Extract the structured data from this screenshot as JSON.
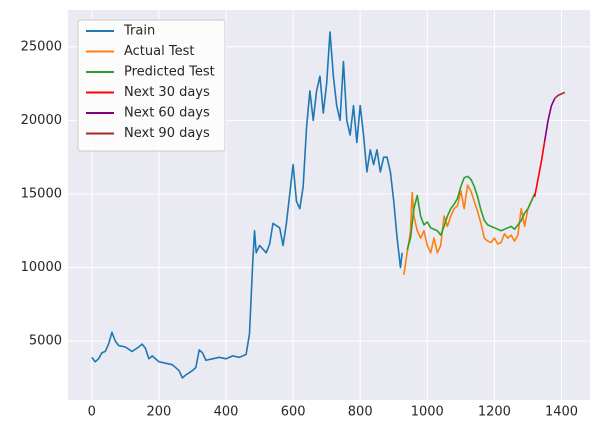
{
  "chart_data": {
    "type": "line",
    "xlim": [
      -71,
      1485
    ],
    "xticks": [
      0,
      200,
      400,
      600,
      800,
      1000,
      1200,
      1400
    ],
    "ylim": [
      1000,
      27500
    ],
    "yticks": [
      5000,
      10000,
      15000,
      20000,
      25000
    ],
    "grid": true,
    "legend": "upper left",
    "series": [
      {
        "name": "Train",
        "color": "#1f77b4",
        "x": [
          0,
          10,
          20,
          30,
          40,
          50,
          60,
          70,
          80,
          100,
          120,
          140,
          150,
          160,
          170,
          180,
          200,
          220,
          240,
          260,
          270,
          280,
          300,
          310,
          320,
          330,
          340,
          360,
          380,
          400,
          420,
          440,
          460,
          470,
          480,
          485,
          490,
          500,
          520,
          530,
          540,
          560,
          570,
          580,
          590,
          600,
          610,
          620,
          630,
          640,
          650,
          660,
          670,
          680,
          690,
          700,
          710,
          720,
          730,
          740,
          750,
          760,
          770,
          780,
          790,
          800,
          810,
          820,
          830,
          840,
          850,
          860,
          870,
          880,
          890,
          900,
          910,
          920,
          925
        ],
        "values": [
          3900,
          3600,
          3800,
          4200,
          4300,
          4800,
          5600,
          5000,
          4700,
          4600,
          4300,
          4600,
          4800,
          4500,
          3800,
          4000,
          3600,
          3500,
          3400,
          3000,
          2500,
          2700,
          3000,
          3200,
          4400,
          4200,
          3700,
          3800,
          3900,
          3800,
          4000,
          3900,
          4100,
          5500,
          10500,
          12500,
          11000,
          11500,
          11000,
          11600,
          13000,
          12700,
          11500,
          13000,
          15000,
          17000,
          14500,
          14000,
          15500,
          19500,
          22000,
          20000,
          22000,
          23000,
          20500,
          22500,
          26000,
          23000,
          21000,
          20000,
          24000,
          20000,
          19000,
          21000,
          18500,
          21000,
          19000,
          16500,
          18000,
          17000,
          18000,
          16500,
          17500,
          17500,
          16500,
          14500,
          12000,
          10000,
          11000
        ]
      },
      {
        "name": "Actual Test",
        "color": "#ff7f0e",
        "x": [
          930,
          940,
          950,
          955,
          960,
          970,
          980,
          990,
          1000,
          1010,
          1020,
          1030,
          1040,
          1050,
          1060,
          1070,
          1080,
          1090,
          1100,
          1110,
          1120,
          1130,
          1140,
          1150,
          1160,
          1170,
          1180,
          1190,
          1200,
          1210,
          1220,
          1230,
          1240,
          1250,
          1260,
          1270,
          1280,
          1290,
          1300,
          1310,
          1320
        ],
        "values": [
          9500,
          11000,
          12500,
          15100,
          13500,
          12500,
          12000,
          12500,
          11500,
          11000,
          12000,
          11000,
          11500,
          13500,
          12800,
          13500,
          14000,
          14200,
          15200,
          14000,
          15600,
          15200,
          14500,
          13800,
          13000,
          12000,
          11800,
          11700,
          12000,
          11600,
          11700,
          12300,
          12000,
          12200,
          11800,
          12200,
          14000,
          12800,
          14000,
          14500,
          15000
        ]
      },
      {
        "name": "Predicted Test",
        "color": "#2ca02c",
        "x": [
          940,
          950,
          960,
          970,
          980,
          990,
          1000,
          1010,
          1020,
          1030,
          1040,
          1050,
          1060,
          1070,
          1080,
          1090,
          1100,
          1110,
          1120,
          1130,
          1140,
          1150,
          1160,
          1170,
          1180,
          1190,
          1200,
          1210,
          1220,
          1230,
          1240,
          1250,
          1260,
          1270,
          1280,
          1290,
          1300,
          1310,
          1320
        ],
        "values": [
          11200,
          12000,
          14000,
          14900,
          13500,
          12900,
          13100,
          12700,
          12600,
          12500,
          12200,
          12800,
          13500,
          14000,
          14300,
          14700,
          15500,
          16100,
          16200,
          16000,
          15500,
          14800,
          13900,
          13200,
          12900,
          12800,
          12700,
          12600,
          12500,
          12600,
          12700,
          12800,
          12600,
          12900,
          13200,
          13700,
          14000,
          14500,
          15000
        ]
      },
      {
        "name": "Next 30 days",
        "color": "#ff0000",
        "x": [
          1320,
          1330,
          1340,
          1350
        ],
        "values": [
          14800,
          16000,
          17200,
          18600
        ]
      },
      {
        "name": "Next 60 days",
        "color": "#800080",
        "x": [
          1350,
          1360,
          1370,
          1380
        ],
        "values": [
          18600,
          20000,
          21000,
          21500
        ]
      },
      {
        "name": "Next 90 days",
        "color": "#a52a2a",
        "x": [
          1380,
          1390,
          1400,
          1410
        ],
        "values": [
          21500,
          21700,
          21800,
          21900
        ]
      }
    ]
  }
}
